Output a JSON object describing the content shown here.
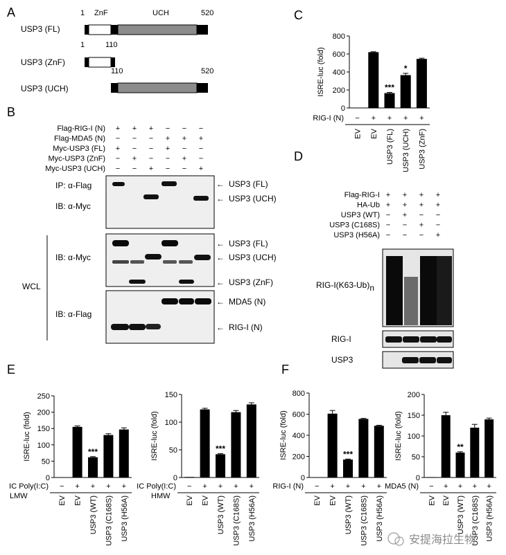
{
  "panels": {
    "A": {
      "letter": "A",
      "constructs": [
        {
          "label": "USP3 (FL)",
          "start": 1,
          "end": 520,
          "start_label": "1",
          "end_label": "520",
          "domain1": "ZnF",
          "domain2": "UCH"
        },
        {
          "label": "USP3 (ZnF)",
          "start": 1,
          "end": 110,
          "start_label": "1",
          "end_label": "110"
        },
        {
          "label": "USP3 (UCH)",
          "start": 110,
          "end": 520,
          "start_label": "110",
          "end_label": "520"
        }
      ]
    },
    "B": {
      "letter": "B",
      "rows": [
        {
          "label": "Flag-RIG-I (N)",
          "marks": [
            "+",
            "+",
            "+",
            "−",
            "−",
            "−"
          ]
        },
        {
          "label": "Flag-MDA5 (N)",
          "marks": [
            "−",
            "−",
            "−",
            "+",
            "+",
            "+"
          ]
        },
        {
          "label": "Myc-USP3 (FL)",
          "marks": [
            "+",
            "−",
            "−",
            "+",
            "−",
            "−"
          ]
        },
        {
          "label": "Myc-USP3 (ZnF)",
          "marks": [
            "−",
            "+",
            "−",
            "−",
            "+",
            "−"
          ]
        },
        {
          "label": "Myc-USP3 (UCH)",
          "marks": [
            "−",
            "−",
            "+",
            "−",
            "−",
            "+"
          ]
        }
      ],
      "blot_labels": [
        "IP: α-Flag",
        "IB: α-Myc",
        "IB: α-Myc",
        "IB: α-Flag"
      ],
      "side_label": "WCL",
      "band_labels": [
        "USP3 (FL)",
        "USP3 (UCH)",
        "USP3 (FL)",
        "USP3 (UCH)",
        "USP3 (ZnF)",
        "MDA5 (N)",
        "RIG-I (N)"
      ]
    },
    "C": {
      "letter": "C",
      "stimulus": "RIG-I (N)",
      "marks": [
        "−",
        "+",
        "+",
        "+",
        "+"
      ]
    },
    "D": {
      "letter": "D",
      "rows": [
        {
          "label": "Flag-RIG-I",
          "marks": [
            "+",
            "+",
            "+",
            "+"
          ]
        },
        {
          "label": "HA-Ub",
          "marks": [
            "+",
            "+",
            "+",
            "+"
          ]
        },
        {
          "label": "USP3 (WT)",
          "marks": [
            "−",
            "+",
            "−",
            "−"
          ]
        },
        {
          "label": "USP3 (C168S)",
          "marks": [
            "−",
            "−",
            "+",
            "−"
          ]
        },
        {
          "label": "USP3 (H56A)",
          "marks": [
            "−",
            "−",
            "−",
            "+"
          ]
        }
      ],
      "blot_labels": [
        "RIG-I(K63-Ub)",
        "n",
        "RIG-I",
        "USP3"
      ]
    },
    "E": {
      "letter": "E",
      "stim_left": "IC Poly(I:C)",
      "sub_left": "LMW",
      "stim_right": "IC Poly(I:C)",
      "sub_right": "HMW"
    },
    "F": {
      "letter": "F",
      "stim_left": "RIG-I (N)",
      "stim_right": "MDA5 (N)"
    }
  },
  "watermark": "安提海拉生物",
  "chart_data": [
    {
      "id": "C",
      "type": "bar",
      "ylabel": "ISRE-luc  (fold)",
      "ylim": [
        0,
        800
      ],
      "ticks": [
        0,
        200,
        400,
        600,
        800
      ],
      "categories": [
        "EV",
        "EV",
        "USP3 (FL)",
        "USP3 (UCH)",
        "USP3 (ZnF)"
      ],
      "values": [
        3,
        620,
        165,
        365,
        545
      ],
      "errors": [
        0,
        5,
        8,
        20,
        8
      ],
      "annotations": [
        "",
        "",
        "***",
        "*",
        ""
      ]
    },
    {
      "id": "E-LMW",
      "type": "bar",
      "ylabel": "ISRE-luc (fold)",
      "ylim": [
        0,
        250
      ],
      "ticks": [
        0,
        50,
        100,
        150,
        200,
        250
      ],
      "categories": [
        "EV",
        "EV",
        "USP3 (WT)",
        "USP3 (C168S)",
        "USP3 (H56A)"
      ],
      "values": [
        1,
        155,
        62,
        130,
        147
      ],
      "errors": [
        0,
        3,
        2,
        4,
        5
      ],
      "annotations": [
        "",
        "",
        "***",
        "",
        ""
      ]
    },
    {
      "id": "E-HMW",
      "type": "bar",
      "ylabel": "ISRE-luc (fold)",
      "ylim": [
        0,
        150
      ],
      "ticks": [
        0,
        50,
        100,
        150
      ],
      "categories": [
        "EV",
        "EV",
        "USP3 (WT)",
        "USP3 (C168S)",
        "USP3 (H56A)"
      ],
      "values": [
        1,
        123,
        42,
        118,
        132
      ],
      "errors": [
        0,
        2,
        1,
        3,
        3
      ],
      "annotations": [
        "",
        "",
        "***",
        "",
        ""
      ]
    },
    {
      "id": "F-RIGI",
      "type": "bar",
      "ylabel": "ISRE-luc (fold)",
      "ylim": [
        0,
        800
      ],
      "ticks": [
        0,
        200,
        400,
        600,
        800
      ],
      "categories": [
        "EV",
        "EV",
        "USP3 (WT)",
        "USP3 (C168S)",
        "USP3 (H56A)"
      ],
      "values": [
        3,
        605,
        170,
        555,
        490
      ],
      "errors": [
        0,
        30,
        5,
        5,
        5
      ],
      "annotations": [
        "",
        "",
        "***",
        "",
        ""
      ]
    },
    {
      "id": "F-MDA5",
      "type": "bar",
      "ylabel": "ISRE-luc (fold)",
      "ylim": [
        0,
        200
      ],
      "ticks": [
        0,
        50,
        100,
        150,
        200
      ],
      "categories": [
        "EV",
        "EV",
        "USP3 (WT)",
        "USP3 (C168S)",
        "USP3 (H56A)"
      ],
      "values": [
        1,
        150,
        60,
        120,
        140
      ],
      "errors": [
        0,
        7,
        2,
        8,
        3
      ],
      "annotations": [
        "",
        "",
        "**",
        "",
        ""
      ]
    }
  ]
}
